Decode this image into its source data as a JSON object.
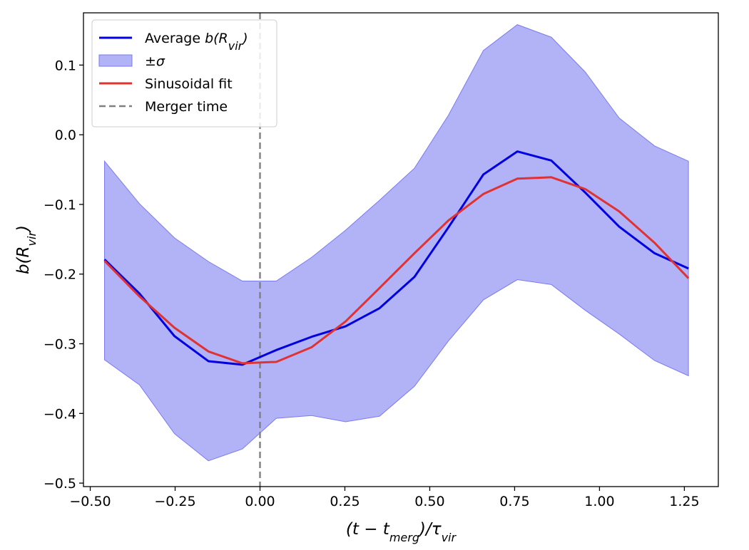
{
  "chart_data": {
    "type": "line",
    "title": "",
    "xlabel": "(t − t_merg)/τ_vir",
    "ylabel": "b(R_vir)",
    "xlim": [
      -0.52,
      1.35
    ],
    "ylim": [
      -0.505,
      0.175
    ],
    "grid": false,
    "legend_position": "top-left",
    "x_ticks": [
      -0.5,
      -0.25,
      0.0,
      0.25,
      0.5,
      0.75,
      1.0,
      1.25
    ],
    "x_tick_labels": [
      "−0.50",
      "−0.25",
      "0.00",
      "0.25",
      "0.50",
      "0.75",
      "1.00",
      "1.25"
    ],
    "y_ticks": [
      -0.5,
      -0.4,
      -0.3,
      -0.2,
      -0.1,
      0.0,
      0.1
    ],
    "y_tick_labels": [
      "−0.5",
      "−0.4",
      "−0.3",
      "−0.2",
      "−0.1",
      "0.0",
      "0.1"
    ],
    "x": [
      -0.458,
      -0.355,
      -0.252,
      -0.152,
      -0.052,
      0.048,
      0.152,
      0.252,
      0.352,
      0.455,
      0.555,
      0.658,
      0.758,
      0.858,
      0.958,
      1.058,
      1.162,
      1.262
    ],
    "series": [
      {
        "name": "Average b(R_vir)",
        "kind": "line",
        "color": "#0000e0",
        "values": [
          -0.179,
          -0.228,
          -0.289,
          -0.325,
          -0.33,
          -0.309,
          -0.29,
          -0.275,
          -0.249,
          -0.204,
          -0.133,
          -0.057,
          -0.024,
          -0.037,
          -0.083,
          -0.132,
          -0.17,
          -0.192
        ]
      },
      {
        "name": "±σ",
        "kind": "band",
        "color": "#7b7bf0",
        "lower": [
          -0.323,
          -0.359,
          -0.429,
          -0.468,
          -0.451,
          -0.407,
          -0.403,
          -0.412,
          -0.404,
          -0.361,
          -0.296,
          -0.237,
          -0.208,
          -0.215,
          -0.252,
          -0.286,
          -0.324,
          -0.346
        ],
        "upper": [
          -0.038,
          -0.099,
          -0.148,
          -0.182,
          -0.21,
          -0.21,
          -0.176,
          -0.137,
          -0.094,
          -0.048,
          0.028,
          0.121,
          0.158,
          0.14,
          0.09,
          0.024,
          -0.016,
          -0.038
        ]
      },
      {
        "name": "Sinusoidal fit",
        "kind": "line",
        "color": "#e03232",
        "values": [
          -0.181,
          -0.232,
          -0.277,
          -0.311,
          -0.328,
          -0.326,
          -0.305,
          -0.268,
          -0.22,
          -0.17,
          -0.123,
          -0.085,
          -0.063,
          -0.061,
          -0.078,
          -0.11,
          -0.155,
          -0.206
        ]
      },
      {
        "name": "Merger time",
        "kind": "vline",
        "color": "#808080",
        "x": 0.0
      }
    ]
  }
}
